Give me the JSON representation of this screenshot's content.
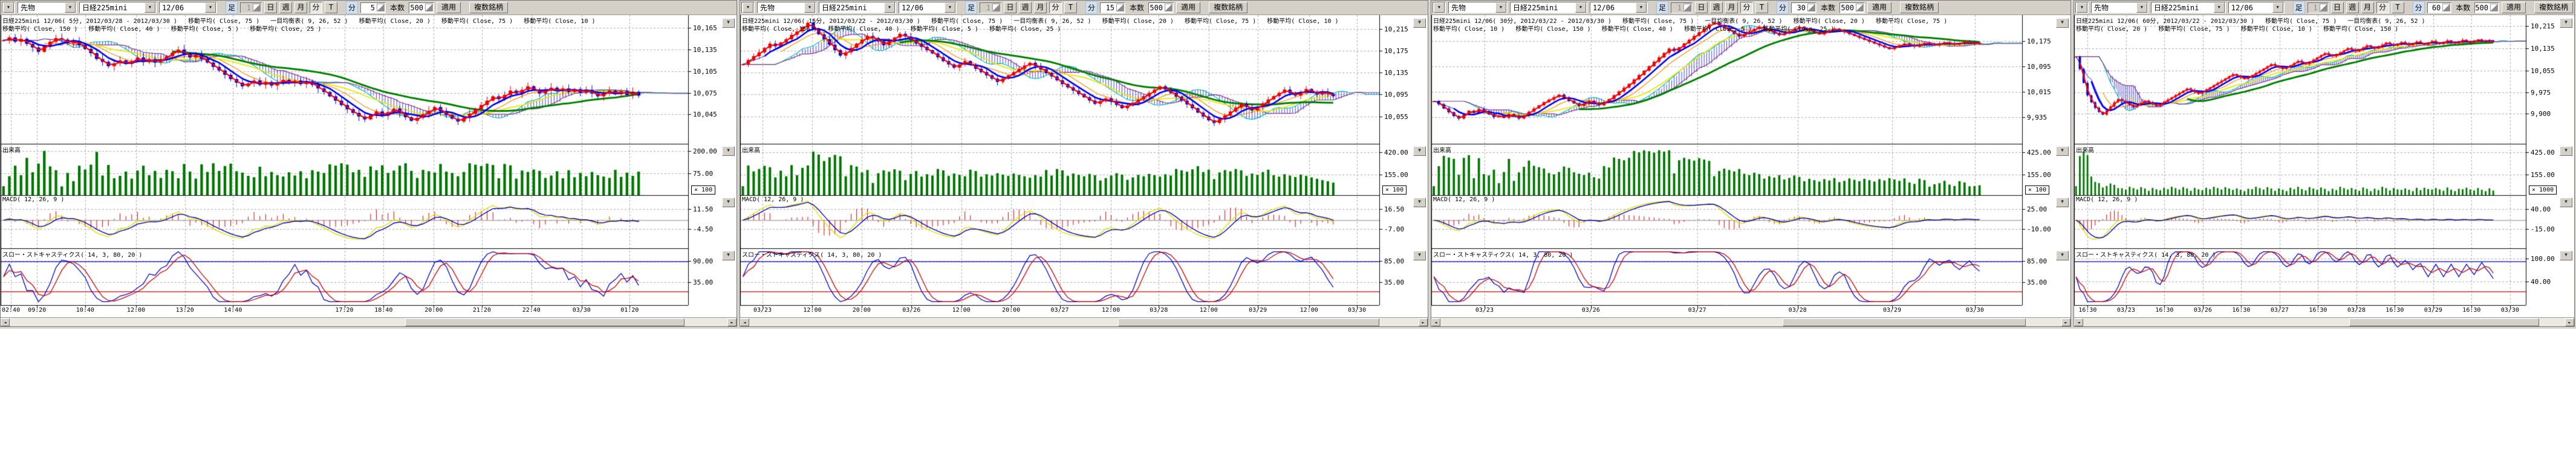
{
  "panels": [
    {
      "toolbar": {
        "category": "先物",
        "symbol": "日経225mini",
        "contract": "12/06",
        "ashi_label": "足",
        "ashi_value": "1",
        "btn_day": "日",
        "btn_week": "週",
        "btn_month": "月",
        "btn_min": "分",
        "btn_tick": "T",
        "minute_label": "分",
        "minute_value": "5",
        "bars_label": "本数",
        "bars_value": "500",
        "apply_label": "適用",
        "multi_label": "複数銘柄"
      },
      "legend_line1": "日経225mini 12/06( 5分, 2012/03/28 - 2012/03/30 )   移動平均( Close, 75 )   一目均衡表( 9, 26, 52 )   移動平均( Close, 20 )   移動平均( Close, 75 )   移動平均( Close, 10 )",
      "legend_line2": "移動平均( Close, 150 )   移動平均( Close, 40 )   移動平均( Close, 5 )   移動平均( Close, 25 )",
      "volume_label": "出来高",
      "macd_label": "MACD( 12, 26, 9 )",
      "stoch_label": "スロー・ストキャスティクス( 14, 3, 80, 20 )",
      "price_axis": {
        "min": 10004,
        "max": 10183,
        "ticks": [
          {
            "v": 10165,
            "label": "10,165"
          },
          {
            "v": 10135,
            "label": "10,135"
          },
          {
            "v": 10105,
            "label": "10,105"
          },
          {
            "v": 10075,
            "label": "10,075"
          },
          {
            "v": 10045,
            "label": "10,045"
          }
        ]
      },
      "volume_ticks": [
        {
          "label": "200.00",
          "fy": 0.14
        },
        {
          "label": "75.00",
          "fy": 0.58
        }
      ],
      "volume_mult": "× 100",
      "volume_full": 230,
      "macd_ticks": [
        {
          "label": "11.50",
          "fy": 0.26
        },
        {
          "label": "-4.50",
          "fy": 0.64
        }
      ],
      "stoch_ticks": [
        {
          "label": "90.00",
          "fy": 0.22
        },
        {
          "label": "35.00",
          "fy": 0.6
        }
      ],
      "time_labels": [
        {
          "t": "02:40",
          "fx": 0.015
        },
        {
          "t": "09:20",
          "fx": 0.053
        },
        {
          "t": "10:40",
          "fx": 0.123
        },
        {
          "t": "12:00",
          "fx": 0.197
        },
        {
          "t": "13:20",
          "fx": 0.268
        },
        {
          "t": "14:40",
          "fx": 0.338
        },
        {
          "t": "17:20",
          "fx": 0.5
        },
        {
          "t": "18:40",
          "fx": 0.557
        },
        {
          "t": "20:00",
          "fx": 0.63
        },
        {
          "t": "21:20",
          "fx": 0.7
        },
        {
          "t": "22:40",
          "fx": 0.772
        },
        {
          "t": "03/30",
          "fx": 0.845
        },
        {
          "t": "01:20",
          "fx": 0.915
        }
      ],
      "chart_data": {
        "type": "candlestick",
        "symbol": "日経225mini 12/06",
        "timeframe": "5分",
        "date_range": "2012/03/28 - 2012/03/30",
        "closes": [
          10148,
          10152,
          10146,
          10150,
          10143,
          10138,
          10132,
          10140,
          10146,
          10151,
          10149,
          10144,
          10147,
          10141,
          10136,
          10130,
          10122,
          10118,
          10112,
          10116,
          10120,
          10115,
          10119,
          10124,
          10118,
          10122,
          10117,
          10121,
          10126,
          10131,
          10135,
          10129,
          10124,
          10128,
          10122,
          10117,
          10111,
          10106,
          10100,
          10094,
          10089,
          10084,
          10088,
          10092,
          10086,
          10090,
          10085,
          10089,
          10093,
          10088,
          10092,
          10087,
          10091,
          10086,
          10081,
          10076,
          10070,
          10064,
          10058,
          10052,
          10047,
          10042,
          10038,
          10044,
          10049,
          10043,
          10048,
          10053,
          10047,
          10041,
          10036,
          10040,
          10045,
          10050,
          10055,
          10049,
          10044,
          10039,
          10035,
          10040,
          10046,
          10052,
          10058,
          10064,
          10070,
          10066,
          10072,
          10078,
          10074,
          10079,
          10084,
          10079,
          10074,
          10078,
          10082,
          10077,
          10081,
          10076,
          10080,
          10075,
          10079,
          10074,
          10070,
          10074,
          10078,
          10073,
          10077,
          10072,
          10076,
          10071
        ]
      }
    },
    {
      "toolbar": {
        "category": "先物",
        "symbol": "日経225mini",
        "contract": "12/06",
        "ashi_label": "足",
        "ashi_value": "1",
        "btn_day": "日",
        "btn_week": "週",
        "btn_month": "月",
        "btn_min": "分",
        "btn_tick": "T",
        "minute_label": "分",
        "minute_value": "15",
        "bars_label": "本数",
        "bars_value": "500",
        "apply_label": "適用",
        "multi_label": "複数銘柄"
      },
      "legend_line1": "日経225mini 12/06( 15分, 2012/03/22 - 2012/03/30 )   移動平均( Close, 75 )   一目均衡表( 9, 26, 52 )   移動平均( Close, 20 )   移動平均( Close, 75 )   移動平均( Close, 10 )",
      "legend_line2": "移動平均( Close, 150 )   移動平均( Close, 40 )   移動平均( Close, 5 )   移動平均( Close, 25 )",
      "volume_label": "出来高",
      "macd_label": "MACD( 12, 26, 9 )",
      "stoch_label": "スロー・ストキャスティクス( 14, 3, 80, 20 )",
      "price_axis": {
        "min": 10005,
        "max": 10240,
        "ticks": [
          {
            "v": 10215,
            "label": "10,215"
          },
          {
            "v": 10175,
            "label": "10,175"
          },
          {
            "v": 10135,
            "label": "10,135"
          },
          {
            "v": 10095,
            "label": "10,095"
          },
          {
            "v": 10055,
            "label": "10,055"
          }
        ]
      },
      "volume_ticks": [
        {
          "label": "420.00",
          "fy": 0.16
        },
        {
          "label": "155.00",
          "fy": 0.6
        }
      ],
      "volume_mult": "× 100",
      "volume_full": 500,
      "macd_ticks": [
        {
          "label": "16.50",
          "fy": 0.26
        },
        {
          "label": "-7.00",
          "fy": 0.64
        }
      ],
      "stoch_ticks": [
        {
          "label": "85.00",
          "fy": 0.22
        },
        {
          "label": "35.00",
          "fy": 0.6
        }
      ],
      "time_labels": [
        {
          "t": "03/23",
          "fx": 0.035
        },
        {
          "t": "12:00",
          "fx": 0.113
        },
        {
          "t": "20:00",
          "fx": 0.19
        },
        {
          "t": "03/26",
          "fx": 0.268
        },
        {
          "t": "12:00",
          "fx": 0.346
        },
        {
          "t": "20:00",
          "fx": 0.424
        },
        {
          "t": "03/27",
          "fx": 0.5
        },
        {
          "t": "12:00",
          "fx": 0.58
        },
        {
          "t": "03/28",
          "fx": 0.655
        },
        {
          "t": "12:00",
          "fx": 0.733
        },
        {
          "t": "03/29",
          "fx": 0.81
        },
        {
          "t": "12:00",
          "fx": 0.89
        },
        {
          "t": "03/30",
          "fx": 0.965
        }
      ],
      "chart_data": {
        "type": "candlestick",
        "symbol": "日経225mini 12/06",
        "timeframe": "15分",
        "date_range": "2012/03/22 - 2012/03/30",
        "closes": [
          10150,
          10158,
          10165,
          10172,
          10180,
          10188,
          10183,
          10190,
          10196,
          10204,
          10210,
          10218,
          10226,
          10215,
          10205,
          10196,
          10186,
          10176,
          10166,
          10172,
          10180,
          10188,
          10195,
          10202,
          10198,
          10192,
          10185,
          10192,
          10199,
          10206,
          10201,
          10195,
          10188,
          10182,
          10176,
          10170,
          10163,
          10156,
          10150,
          10144,
          10150,
          10156,
          10149,
          10142,
          10136,
          10130,
          10124,
          10118,
          10124,
          10130,
          10136,
          10142,
          10148,
          10153,
          10147,
          10141,
          10134,
          10128,
          10121,
          10114,
          10108,
          10102,
          10096,
          10090,
          10084,
          10078,
          10083,
          10088,
          10082,
          10076,
          10070,
          10075,
          10080,
          10086,
          10092,
          10098,
          10104,
          10110,
          10104,
          10098,
          10091,
          10084,
          10077,
          10070,
          10062,
          10055,
          10048,
          10043,
          10050,
          10057,
          10064,
          10071,
          10078,
          10072,
          10066,
          10072,
          10079,
          10086,
          10092,
          10098,
          10104,
          10098,
          10093,
          10099,
          10105,
          10100,
          10095,
          10100,
          10096,
          10092
        ]
      }
    },
    {
      "toolbar": {
        "category": "先物",
        "symbol": "日経225mini",
        "contract": "12/06",
        "ashi_label": "足",
        "ashi_value": "1",
        "btn_day": "日",
        "btn_week": "週",
        "btn_month": "月",
        "btn_min": "分",
        "btn_tick": "T",
        "minute_label": "分",
        "minute_value": "30",
        "bars_label": "本数",
        "bars_value": "500",
        "apply_label": "適用",
        "multi_label": "複数銘柄"
      },
      "legend_line1": "日経225mini 12/06( 30分, 2012/03/22 - 2012/03/30 )   移動平均( Close, 75 )   一目均衡表( 9, 26, 52 )   移動平均( Close, 20 )   移動平均( Close, 75 )",
      "legend_line2": "移動平均( Close, 10 )   移動平均( Close, 150 )   移動平均( Close, 40 )   移動平均( Close, 5 )   移動平均( Close, 25 )",
      "volume_label": "出来高",
      "macd_label": "MACD( 12, 26, 9 )",
      "stoch_label": "スロー・ストキャスティクス( 14, 3, 80, 20 )",
      "price_axis": {
        "min": 9850,
        "max": 10258,
        "ticks": [
          {
            "v": 10175,
            "label": "10,175"
          },
          {
            "v": 10095,
            "label": "10,095"
          },
          {
            "v": 10015,
            "label": "10,015"
          },
          {
            "v": 9935,
            "label": "9,935"
          }
        ]
      },
      "volume_ticks": [
        {
          "label": "425.00",
          "fy": 0.16
        },
        {
          "label": "155.00",
          "fy": 0.6
        }
      ],
      "volume_mult": "× 100",
      "volume_full": 500,
      "macd_ticks": [
        {
          "label": "25.00",
          "fy": 0.26
        },
        {
          "label": "-10.00",
          "fy": 0.64
        }
      ],
      "stoch_ticks": [
        {
          "label": "85.00",
          "fy": 0.22
        },
        {
          "label": "35.00",
          "fy": 0.6
        }
      ],
      "time_labels": [
        {
          "t": "03/23",
          "fx": 0.09
        },
        {
          "t": "03/26",
          "fx": 0.27
        },
        {
          "t": "03/27",
          "fx": 0.45
        },
        {
          "t": "03/28",
          "fx": 0.62
        },
        {
          "t": "03/29",
          "fx": 0.78
        },
        {
          "t": "03/30",
          "fx": 0.92
        }
      ],
      "chart_data": {
        "type": "candlestick",
        "symbol": "日経225mini 12/06",
        "timeframe": "30分",
        "date_range": "2012/03/22 - 2012/03/30",
        "closes": [
          9985,
          9975,
          9962,
          9950,
          9938,
          9930,
          9942,
          9955,
          9948,
          9960,
          9952,
          9944,
          9935,
          9940,
          9932,
          9944,
          9938,
          9930,
          9940,
          9952,
          9962,
          9972,
          9982,
          9990,
          9998,
          10006,
          9996,
          9986,
          9978,
          9970,
          9978,
          9986,
          9979,
          9972,
          9982,
          9992,
          10004,
          10016,
          10028,
          10040,
          10054,
          10068,
          10082,
          10096,
          10110,
          10124,
          10138,
          10152,
          10144,
          10156,
          10168,
          10180,
          10192,
          10204,
          10216,
          10228,
          10235,
          10226,
          10217,
          10208,
          10199,
          10190,
          10198,
          10206,
          10214,
          10222,
          10215,
          10208,
          10201,
          10194,
          10200,
          10207,
          10214,
          10221,
          10215,
          10209,
          10203,
          10197,
          10203,
          10209,
          10215,
          10210,
          10204,
          10198,
          10192,
          10186,
          10180,
          10174,
          10168,
          10162,
          10156,
          10150,
          10156,
          10162,
          10168,
          10163,
          10158,
          10164,
          10170,
          10166,
          10162,
          10167,
          10172,
          10168,
          10164,
          10169,
          10174,
          10170,
          10167,
          10171
        ]
      }
    },
    {
      "toolbar": {
        "category": "先物",
        "symbol": "日経225mini",
        "contract": "12/06",
        "ashi_label": "足",
        "ashi_value": "1",
        "btn_day": "日",
        "btn_week": "週",
        "btn_month": "月",
        "btn_min": "分",
        "btn_tick": "T",
        "minute_label": "分",
        "minute_value": "60",
        "bars_label": "本数",
        "bars_value": "500",
        "apply_label": "適用",
        "multi_label": "複数銘柄"
      },
      "legend_line1": "日経225mini 12/06( 60分, 2012/03/22 - 2012/03/30 )   移動平均( Close, 75 )   一目均衡表( 9, 26, 52 )",
      "legend_line2": "移動平均( Close, 20 )   移動平均( Close, 75 )   移動平均( Close, 10 )   移動平均( Close, 150 )",
      "volume_label": "出来高",
      "macd_label": "MACD( 12, 26, 9 )",
      "stoch_label": "スロー・ストキャスティクス( 14, 3, 80, 20 )",
      "price_axis": {
        "min": 9790,
        "max": 10255,
        "ticks": [
          {
            "v": 10215,
            "label": "10,215"
          },
          {
            "v": 10135,
            "label": "10,135"
          },
          {
            "v": 10055,
            "label": "10,055"
          },
          {
            "v": 9975,
            "label": "9,975"
          },
          {
            "v": 9900,
            "label": "9,900"
          }
        ]
      },
      "volume_ticks": [
        {
          "label": "425.00",
          "fy": 0.16
        },
        {
          "label": "155.00",
          "fy": 0.6
        }
      ],
      "volume_mult": "× 1000",
      "volume_full": 500,
      "macd_ticks": [
        {
          "label": "40.00",
          "fy": 0.26
        },
        {
          "label": "-15.00",
          "fy": 0.64
        }
      ],
      "stoch_ticks": [
        {
          "label": "100.00",
          "fy": 0.18
        },
        {
          "label": "40.00",
          "fy": 0.58
        }
      ],
      "time_labels": [
        {
          "t": "16:30",
          "fx": 0.03
        },
        {
          "t": "03/23",
          "fx": 0.115
        },
        {
          "t": "16:30",
          "fx": 0.2
        },
        {
          "t": "03/26",
          "fx": 0.285
        },
        {
          "t": "16:30",
          "fx": 0.37
        },
        {
          "t": "03/27",
          "fx": 0.455
        },
        {
          "t": "16:30",
          "fx": 0.54
        },
        {
          "t": "03/28",
          "fx": 0.625
        },
        {
          "t": "16:30",
          "fx": 0.71
        },
        {
          "t": "03/29",
          "fx": 0.795
        },
        {
          "t": "16:30",
          "fx": 0.88
        },
        {
          "t": "03/30",
          "fx": 0.965
        }
      ],
      "chart_data": {
        "type": "candlestick",
        "symbol": "日経225mini 12/06",
        "timeframe": "60分",
        "date_range": "2012/03/22 - 2012/03/30",
        "closes": [
          10105,
          10060,
          10010,
          9965,
          9940,
          9920,
          9905,
          9895,
          9910,
          9925,
          9940,
          9952,
          9945,
          9938,
          9930,
          9922,
          9930,
          9938,
          9946,
          9940,
          9933,
          9926,
          9934,
          9942,
          9950,
          9958,
          9966,
          9974,
          9982,
          9990,
          9984,
          9977,
          9970,
          9978,
          9986,
          9994,
          10002,
          10010,
          10018,
          10026,
          10034,
          10042,
          10036,
          10030,
          10024,
          10030,
          10038,
          10046,
          10054,
          10062,
          10070,
          10078,
          10072,
          10066,
          10060,
          10066,
          10074,
          10082,
          10090,
          10084,
          10078,
          10086,
          10094,
          10102,
          10110,
          10118,
          10112,
          10106,
          10112,
          10120,
          10128,
          10136,
          10130,
          10124,
          10130,
          10138,
          10146,
          10140,
          10134,
          10140,
          10148,
          10156,
          10150,
          10144,
          10150,
          10158,
          10152,
          10146,
          10152,
          10160,
          10154,
          10148,
          10154,
          10162,
          10156,
          10150,
          10156,
          10164,
          10158,
          10152,
          10158,
          10166,
          10160,
          10155,
          10161,
          10167,
          10162,
          10157,
          10163,
          10159
        ]
      }
    }
  ],
  "colors": {
    "candle_up": "#e00000",
    "candle_down": "#0000d0",
    "grid": "#aaaaaa",
    "cloud_hatch": "#4444dd",
    "span_a": "#00b8b8",
    "span_b": "#883388",
    "tenkan": "#cc2222",
    "kijun": "#2222cc",
    "ma10": "#ff0000",
    "ma25": "#0000ee",
    "ma40": "#ff8800",
    "ma75": "#e8e800",
    "ma150": "#008000",
    "volume": "#007700",
    "macd_hist": "#dd0000",
    "macd_line": "#e0e000",
    "macd_signal": "#0000bb",
    "macd_zero": "#888888",
    "stoch_k": "#0000cc",
    "stoch_d": "#cc0000",
    "stoch_hi": "#0000bb",
    "stoch_lo": "#cc0000"
  },
  "scroll": {
    "left_arrow": "◄",
    "right_arrow": "►"
  },
  "pane_dropdown_glyph": "▼"
}
